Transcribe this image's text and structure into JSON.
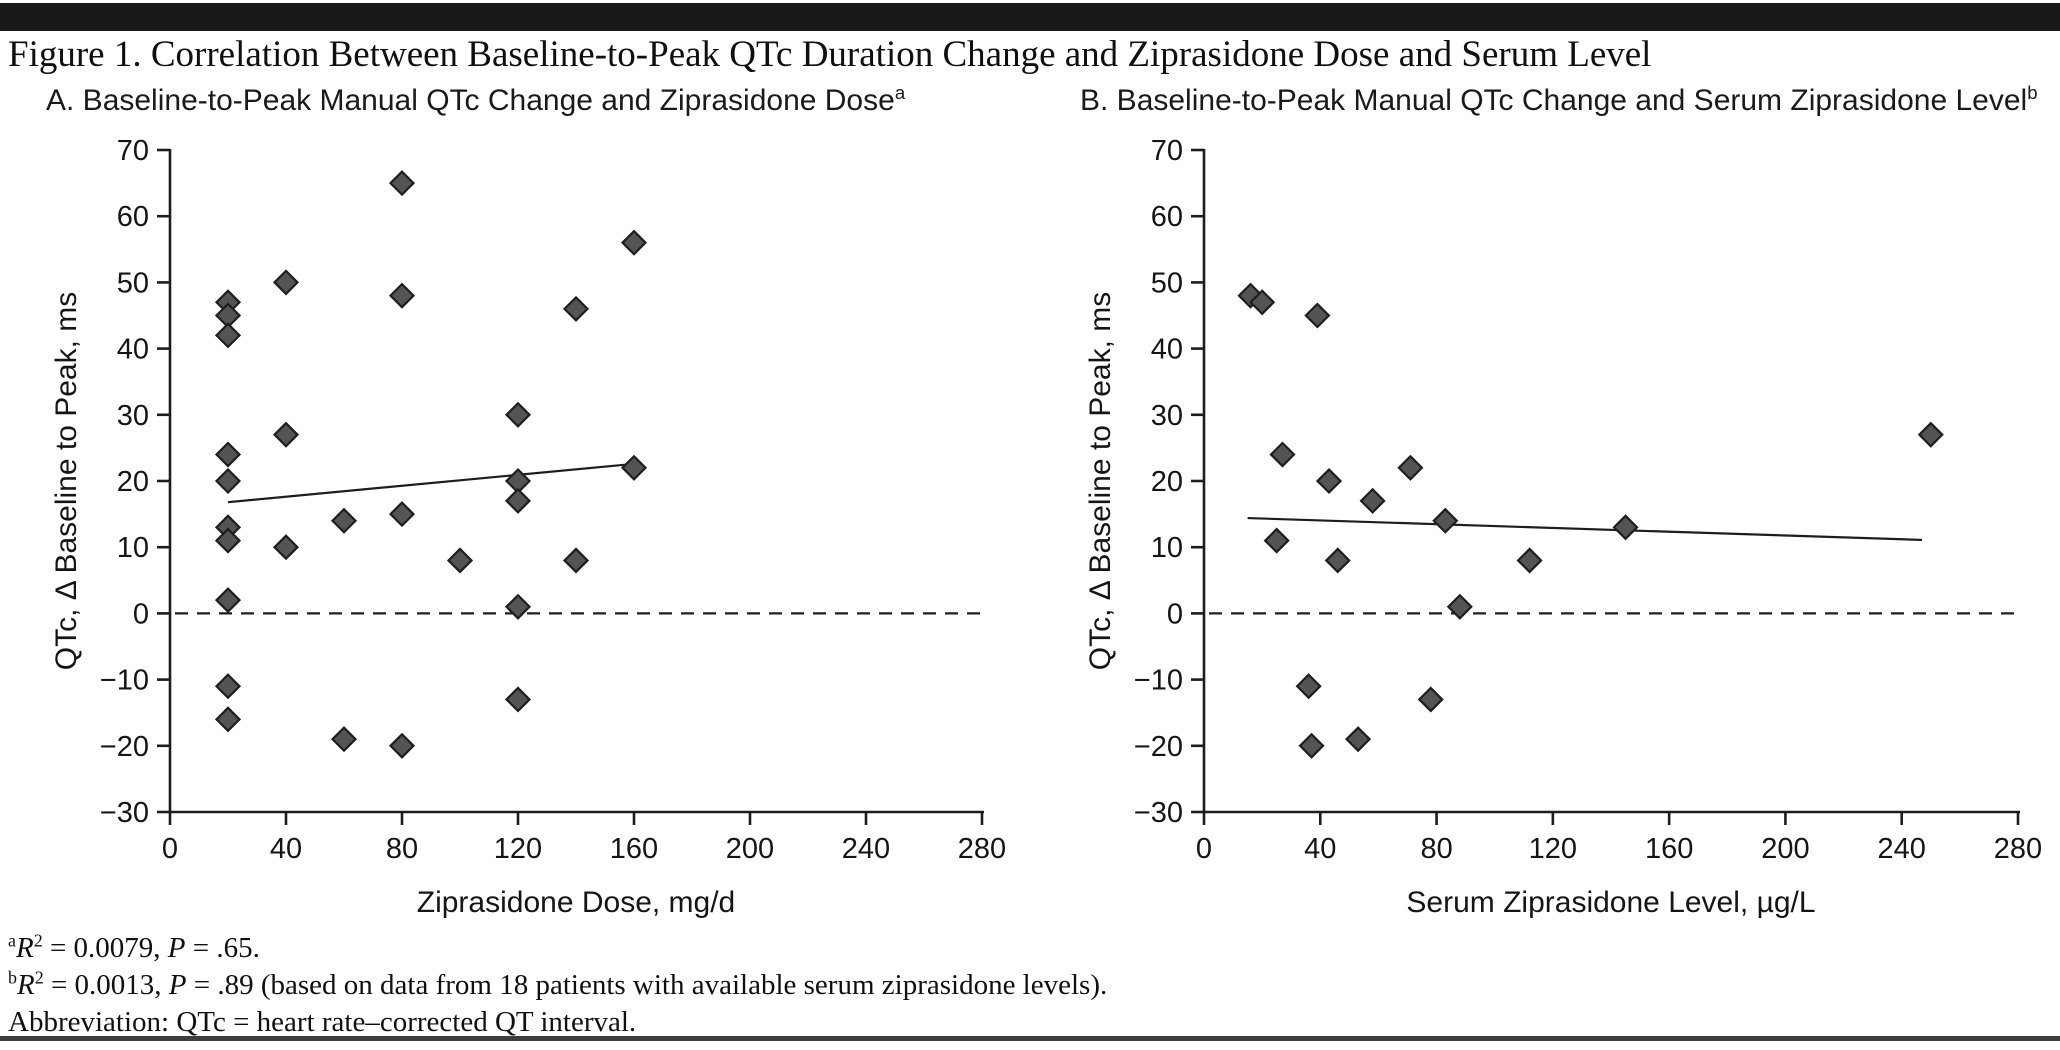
{
  "header": {
    "title": "Figure 1. Correlation Between Baseline-to-Peak QTc Duration Change and Ziprasidone Dose and Serum Level"
  },
  "colors": {
    "marker_fill": "#545454",
    "marker_stroke": "#1e1e1e",
    "axis": "#1d1d1d",
    "trend_line": "#1d1d1d",
    "zero_line": "#1d1d1d",
    "top_bar": "#181818",
    "bottom_rule": "#3d3d3d"
  },
  "chart_data": [
    {
      "id": "a",
      "type": "scatter",
      "subtitle": "A. Baseline-to-Peak Manual QTc Change and Ziprasidone Dose",
      "subtitle_sup": "a",
      "xlabel": "Ziprasidone Dose, mg/d",
      "ylabel": "QTc, Δ Baseline to Peak, ms",
      "xlim": [
        0,
        280
      ],
      "ylim": [
        -30,
        70
      ],
      "xticks": [
        0,
        40,
        80,
        120,
        160,
        200,
        240,
        280
      ],
      "xticklabels": [
        "0",
        "40",
        "80",
        "120",
        "160",
        "200",
        "240",
        "280"
      ],
      "yticks": [
        70,
        60,
        50,
        40,
        30,
        20,
        10,
        0,
        -10,
        -20,
        -30
      ],
      "yticklabels": [
        "70",
        "60",
        "50",
        "40",
        "30",
        "20",
        "10",
        "0",
        "−10",
        "−20",
        "−30"
      ],
      "grid": false,
      "marker": "diamond",
      "reference_line_y": 0,
      "r_squared": "0.0079",
      "p_value": ".65",
      "trend_line": {
        "x": [
          20,
          158
        ],
        "y": [
          16.8,
          22.5
        ]
      },
      "points": [
        [
          20,
          47
        ],
        [
          20,
          45
        ],
        [
          20,
          42
        ],
        [
          20,
          24
        ],
        [
          20,
          20
        ],
        [
          20,
          13
        ],
        [
          20,
          11
        ],
        [
          20,
          2
        ],
        [
          20,
          -11
        ],
        [
          20,
          -16
        ],
        [
          40,
          50
        ],
        [
          40,
          27
        ],
        [
          40,
          10
        ],
        [
          60,
          14
        ],
        [
          60,
          -19
        ],
        [
          80,
          65
        ],
        [
          80,
          48
        ],
        [
          80,
          15
        ],
        [
          80,
          -20
        ],
        [
          100,
          8
        ],
        [
          120,
          30
        ],
        [
          120,
          20
        ],
        [
          120,
          17
        ],
        [
          120,
          1
        ],
        [
          120,
          -13
        ],
        [
          140,
          46
        ],
        [
          140,
          8
        ],
        [
          160,
          56
        ],
        [
          160,
          22
        ]
      ]
    },
    {
      "id": "b",
      "type": "scatter",
      "subtitle": "B. Baseline-to-Peak Manual QTc Change and Serum Ziprasidone Level",
      "subtitle_sup": "b",
      "xlabel": "Serum Ziprasidone Level, µg/L",
      "ylabel": "QTc, Δ Baseline to Peak, ms",
      "xlim": [
        0,
        280
      ],
      "ylim": [
        -30,
        70
      ],
      "xticks": [
        0,
        40,
        80,
        120,
        160,
        200,
        240,
        280
      ],
      "xticklabels": [
        "0",
        "40",
        "80",
        "120",
        "160",
        "200",
        "240",
        "280"
      ],
      "yticks": [
        70,
        60,
        50,
        40,
        30,
        20,
        10,
        0,
        -10,
        -20,
        -30
      ],
      "yticklabels": [
        "70",
        "60",
        "50",
        "40",
        "30",
        "20",
        "10",
        "0",
        "−10",
        "−20",
        "−30"
      ],
      "grid": false,
      "marker": "diamond",
      "reference_line_y": 0,
      "r_squared": "0.0013",
      "p_value": ".89",
      "trend_line": {
        "x": [
          15,
          247
        ],
        "y": [
          14.4,
          11.1
        ]
      },
      "points": [
        [
          16,
          48
        ],
        [
          20,
          47
        ],
        [
          39,
          45
        ],
        [
          27,
          24
        ],
        [
          43,
          20
        ],
        [
          58,
          17
        ],
        [
          71,
          22
        ],
        [
          83,
          14
        ],
        [
          25,
          11
        ],
        [
          46,
          8
        ],
        [
          112,
          8
        ],
        [
          88,
          1
        ],
        [
          36,
          -11
        ],
        [
          78,
          -13
        ],
        [
          37,
          -20
        ],
        [
          53,
          -19
        ],
        [
          145,
          13
        ],
        [
          250,
          27
        ]
      ]
    }
  ],
  "footnotes": [
    {
      "name": "footnote-a",
      "segments": [
        {
          "t": "a",
          "sup": true
        },
        {
          "t": "R",
          "i": true
        },
        {
          "t": "2",
          "sup": true
        },
        {
          "t": " = 0.0079, "
        },
        {
          "t": "P",
          "i": true
        },
        {
          "t": " = .65."
        }
      ]
    },
    {
      "name": "footnote-b",
      "segments": [
        {
          "t": "b",
          "sup": true
        },
        {
          "t": "R",
          "i": true
        },
        {
          "t": "2",
          "sup": true
        },
        {
          "t": " = 0.0013, "
        },
        {
          "t": "P",
          "i": true
        },
        {
          "t": " = .89 (based on data from 18 patients with available serum ziprasidone levels)."
        }
      ]
    },
    {
      "name": "footnote-abbreviation",
      "segments": [
        {
          "t": "Abbreviation: QTc = heart rate–corrected QT interval."
        }
      ]
    }
  ]
}
